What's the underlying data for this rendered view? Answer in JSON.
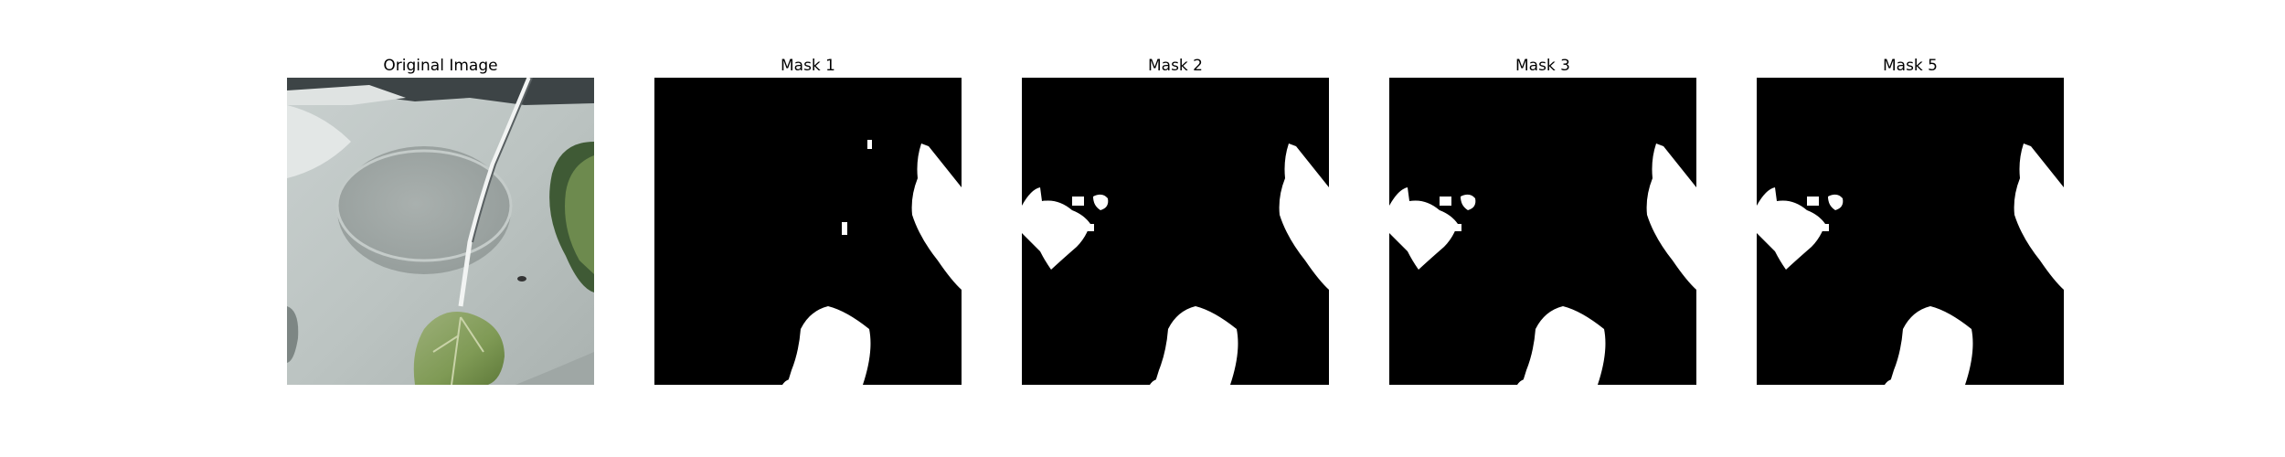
{
  "figure": {
    "panels": [
      {
        "title": "Original Image",
        "kind": "photo"
      },
      {
        "title": "Mask 1",
        "kind": "mask"
      },
      {
        "title": "Mask 2",
        "kind": "mask"
      },
      {
        "title": "Mask 3",
        "kind": "mask"
      },
      {
        "title": "Mask 5",
        "kind": "mask"
      }
    ],
    "colors": {
      "mask_foreground": "#ffffff",
      "mask_background": "#000000"
    }
  }
}
